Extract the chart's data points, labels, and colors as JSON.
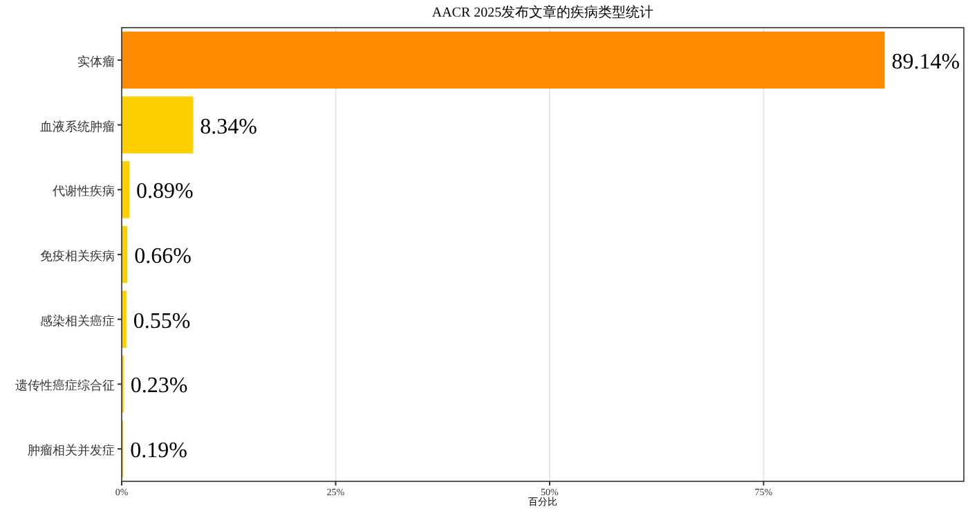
{
  "chart_data": {
    "type": "bar",
    "orientation": "horizontal",
    "title": "AACR 2025发布文章的疾病类型统计",
    "xlabel": "百分比",
    "categories": [
      "实体瘤",
      "血液系统肿瘤",
      "代谢性疾病",
      "免疫相关疾病",
      "感染相关癌症",
      "遗传性癌症综合征",
      "肿瘤相关并发症"
    ],
    "values": [
      89.14,
      8.34,
      0.89,
      0.66,
      0.55,
      0.23,
      0.19
    ],
    "colors": [
      "#ff8c00",
      "#ffd000",
      "#ffd000",
      "#ffd000",
      "#ffd000",
      "#ffd000",
      "#ffd000"
    ],
    "value_labels": [
      "89.14%",
      "8.34%",
      "0.89%",
      "0.66%",
      "0.55%",
      "0.23%",
      "0.19%"
    ],
    "xlim": [
      0,
      98.4
    ],
    "xticks": [
      {
        "value": 0,
        "label": "0%"
      },
      {
        "value": 25,
        "label": "25%"
      },
      {
        "value": 50,
        "label": "50%"
      },
      {
        "value": 75,
        "label": "75%"
      }
    ],
    "grid": "x"
  }
}
